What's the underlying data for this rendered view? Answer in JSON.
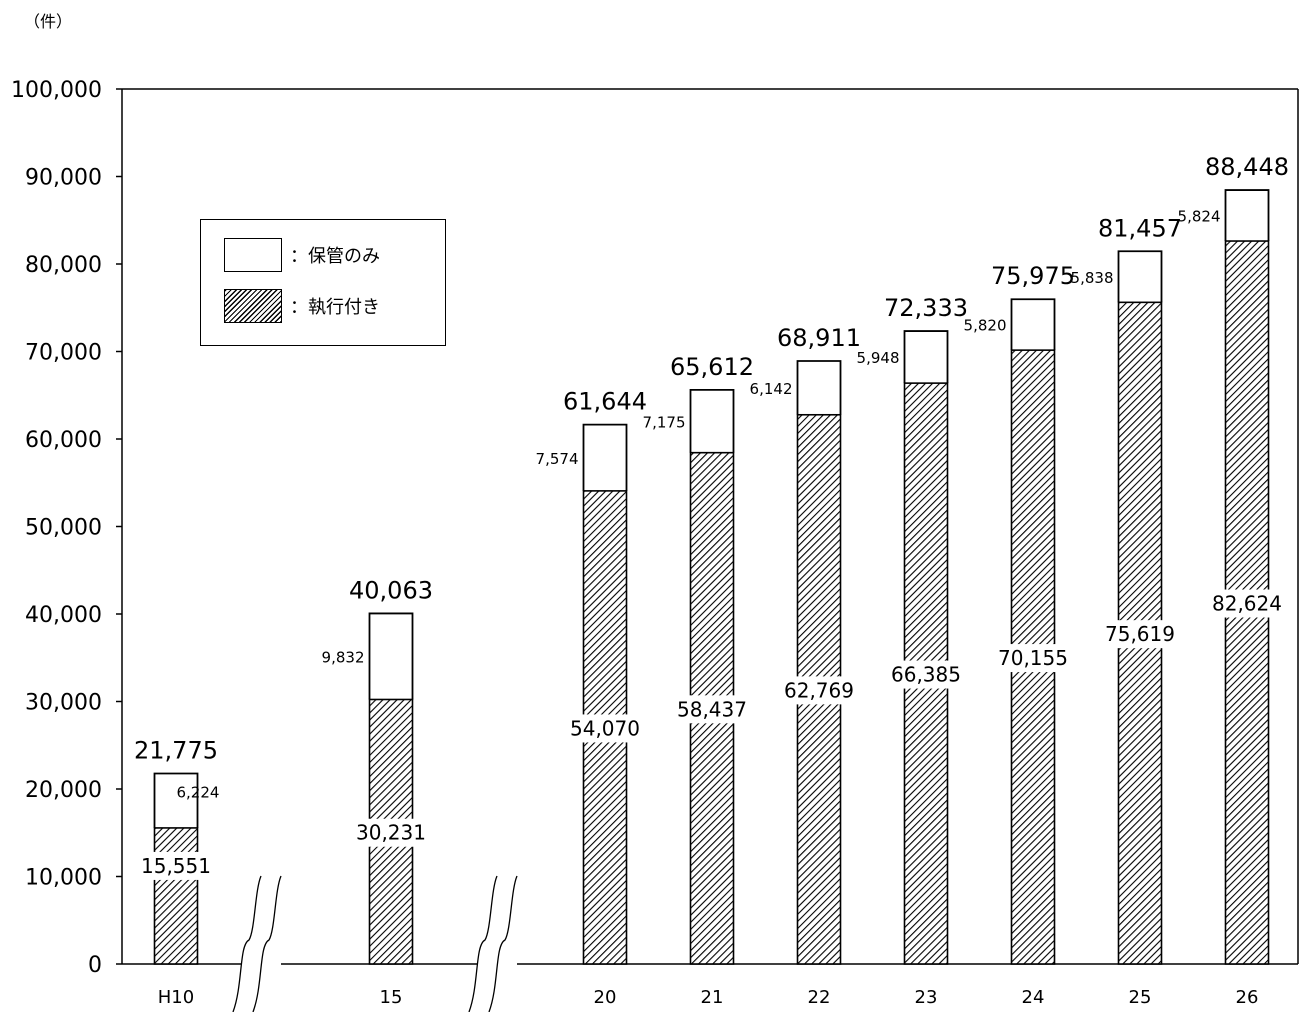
{
  "unit_label": "（件）",
  "legend": {
    "storage_only": "：保管のみ",
    "with_execution": "：執行付き"
  },
  "chart_data": {
    "type": "bar",
    "stacked": true,
    "categories": [
      "H10",
      "15",
      "20",
      "21",
      "22",
      "23",
      "24",
      "25",
      "26"
    ],
    "series": [
      {
        "name": "：執行付き",
        "values": [
          15551,
          30231,
          54070,
          58437,
          62769,
          66385,
          70155,
          75619,
          82624
        ],
        "pattern": "diagonal-hatch"
      },
      {
        "name": "：保管のみ",
        "values": [
          6224,
          9832,
          7574,
          7175,
          6142,
          5948,
          5820,
          5838,
          5824
        ],
        "pattern": "open-bracket"
      }
    ],
    "totals": [
      21775,
      40063,
      61644,
      65612,
      68911,
      72333,
      75975,
      81457,
      88448
    ],
    "ylim": [
      0,
      100000
    ],
    "yticks": [
      0,
      10000,
      20000,
      30000,
      40000,
      50000,
      60000,
      70000,
      80000,
      90000,
      100000
    ],
    "ytick_labels": [
      "0",
      "10,000",
      "20,000",
      "30,000",
      "40,000",
      "50,000",
      "60,000",
      "70,000",
      "80,000",
      "90,000",
      "100,000"
    ],
    "axis_breaks_after": [
      "H10",
      "15"
    ],
    "grid": false,
    "legend_position": "top-left",
    "title": "",
    "xlabel": "",
    "ylabel": ""
  }
}
